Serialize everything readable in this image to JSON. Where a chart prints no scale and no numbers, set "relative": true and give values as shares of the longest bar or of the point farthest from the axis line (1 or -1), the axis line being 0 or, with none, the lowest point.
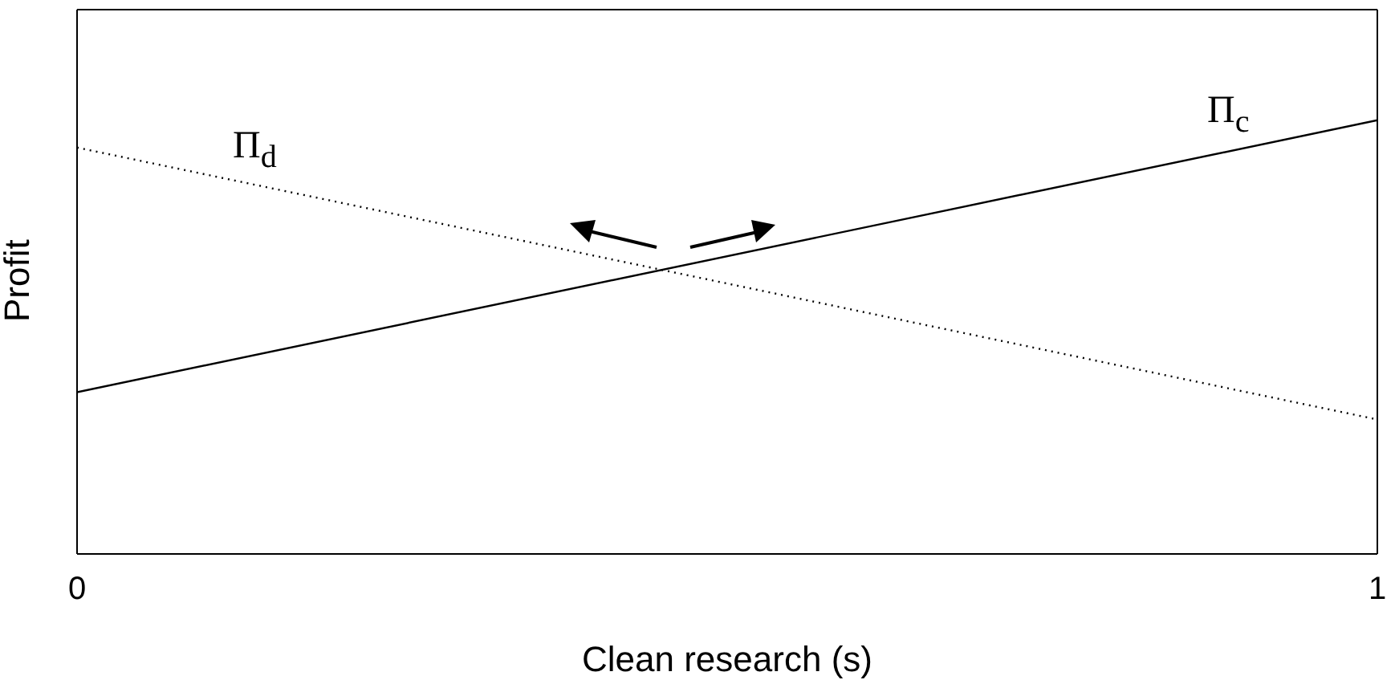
{
  "chart_data": {
    "type": "line",
    "xlabel": "Clean research (s)",
    "ylabel": "Profit",
    "relative": true,
    "x": [
      0,
      1
    ],
    "xlim": [
      0,
      1
    ],
    "xticks": [
      0,
      1
    ],
    "marker": "none",
    "series": [
      {
        "name": "Π$_{d}$",
        "color": "#000000",
        "line_style": "dotted",
        "values": [
          0.937,
          0.31
        ]
      },
      {
        "name": "Π$_{c}$",
        "color": "#000000",
        "line_style": "solid",
        "values": [
          0.373,
          1
        ]
      }
    ]
  }
}
